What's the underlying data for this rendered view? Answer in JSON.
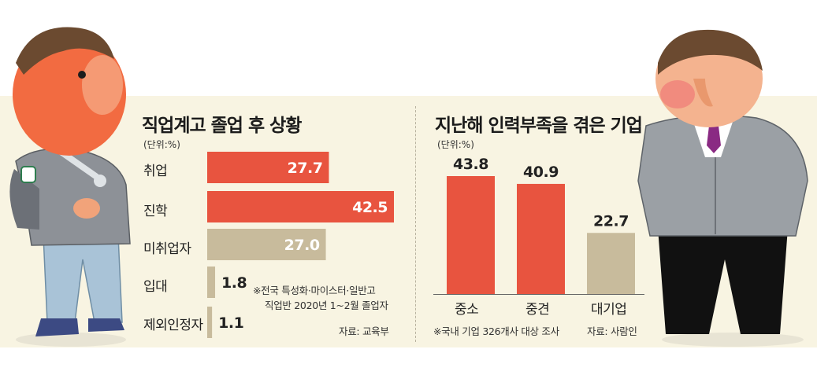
{
  "chart_data": [
    {
      "type": "bar",
      "orientation": "horizontal",
      "title": "직업계고 졸업 후 상황",
      "unit": "(단위:%)",
      "categories": [
        "취업",
        "진학",
        "미취업자",
        "입대",
        "제외인정자"
      ],
      "values": [
        27.7,
        42.5,
        27.0,
        1.8,
        1.1
      ],
      "value_labels": [
        "27.7",
        "42.5",
        "27.0",
        "1.8",
        "1.1"
      ],
      "xlim": [
        0,
        42.5
      ],
      "note_lines": [
        "※전국 특성화·마이스터·일반고",
        "직업반 2020년 1~2월 졸업자"
      ],
      "source": "자료: 교육부",
      "colors": [
        "#e8543f",
        "#e8543f",
        "#c8bb9c",
        "#c8bb9c",
        "#c8bb9c"
      ],
      "grid": false
    },
    {
      "type": "bar",
      "orientation": "vertical",
      "title": "지난해 인력부족을 겪은 기업",
      "unit": "(단위:%)",
      "categories": [
        "중소",
        "중견",
        "대기업"
      ],
      "values": [
        43.8,
        40.9,
        22.7
      ],
      "value_labels": [
        "43.8",
        "40.9",
        "22.7"
      ],
      "ylim": [
        0,
        43.8
      ],
      "note": "※국내 기업 326개사 대상 조사",
      "source": "자료: 사람인",
      "colors": [
        "#e8543f",
        "#e8543f",
        "#c8bb9c"
      ],
      "grid": false
    }
  ],
  "theme": {
    "red": "#e8543f",
    "beige_bar": "#c8bb9c",
    "panel_bg": "#f8f4e2"
  },
  "illustrations": [
    {
      "icon": "student-with-wrench-icon"
    },
    {
      "icon": "businessman-icon"
    }
  ]
}
